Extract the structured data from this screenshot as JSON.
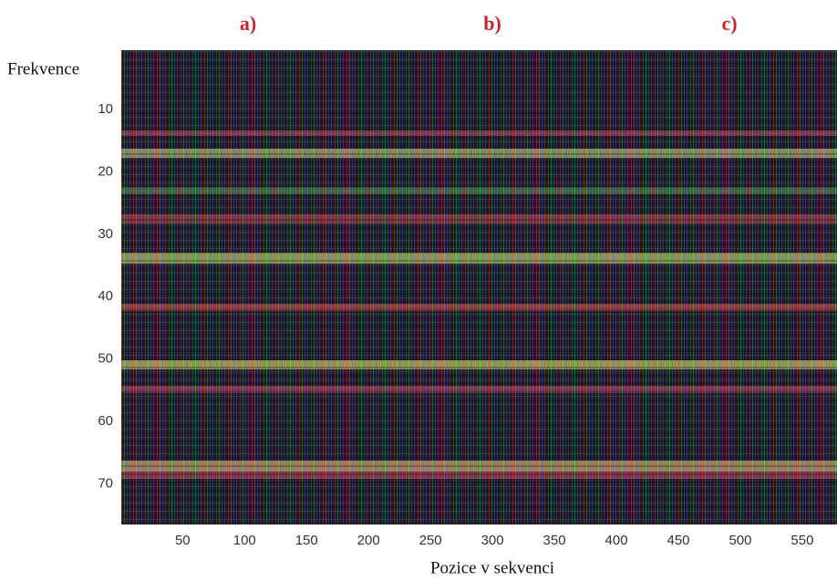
{
  "chart_data": {
    "type": "heatmap",
    "panel_labels": [
      "a)",
      "b)",
      "c)"
    ],
    "y_label": "Frekvence",
    "x_label": "Pozice v sekvenci",
    "xlim": [
      0.5,
      578
    ],
    "xticks": [
      50,
      100,
      150,
      200,
      250,
      300,
      350,
      400,
      450,
      500,
      550
    ],
    "ylim": [
      0.5,
      76.5
    ],
    "yticks": [
      10,
      20,
      30,
      40,
      50,
      60,
      70
    ]
  }
}
